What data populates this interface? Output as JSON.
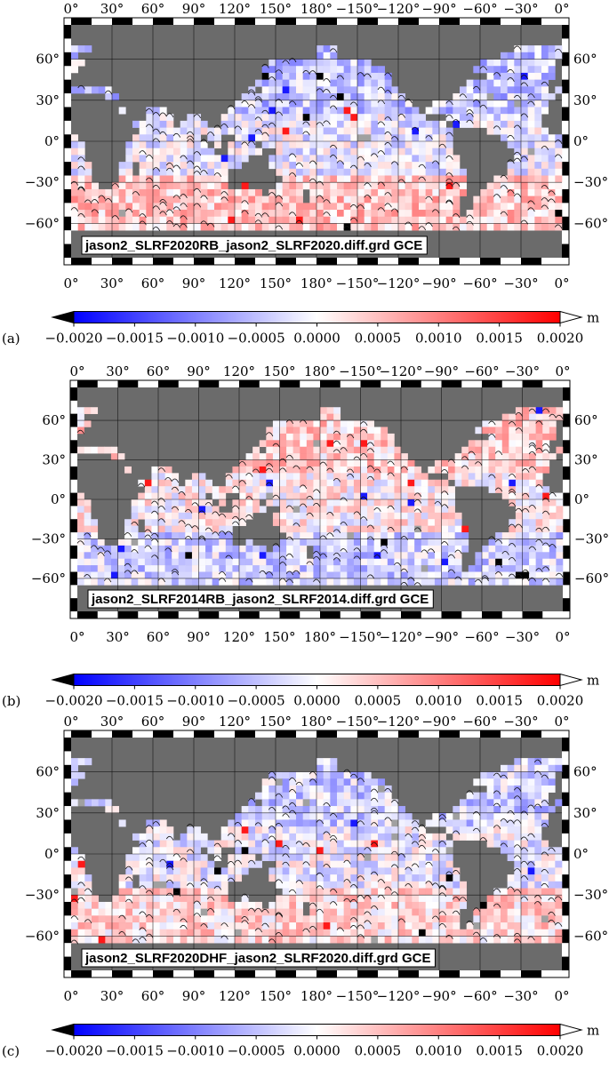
{
  "colors": {
    "land": "#6b6b6b",
    "ocean_base": "#f2f2ff",
    "negative_max": "#0000ff",
    "zero": "#ffffff",
    "positive_max": "#ff0000",
    "missing": "#000000"
  },
  "longitude_ticks": [
    "0°",
    "30°",
    "60°",
    "90°",
    "120°",
    "150°",
    "180°",
    "−150°",
    "−120°",
    "−90°",
    "−60°",
    "−30°",
    "0°"
  ],
  "latitude_ticks": [
    "60°",
    "30°",
    "0°",
    "−30°",
    "−60°"
  ],
  "colorbar": {
    "unit": "m",
    "range": [
      -0.002,
      0.002
    ],
    "tick_labels": [
      "−0.0020",
      "−0.0015",
      "−0.0010",
      "−0.0005",
      "0.0000",
      "0.0005",
      "0.0010",
      "0.0015",
      "0.0020"
    ],
    "colors": [
      "#0000ff",
      "#ffffff",
      "#ff0000"
    ]
  },
  "panels": [
    {
      "id": "a",
      "letter": "(a)",
      "grid_label": "jason2_SLRF2020RB_jason2_SLRF2020.diff.grd GCE",
      "bias": 0.45,
      "north_bias": -0.55
    },
    {
      "id": "b",
      "letter": "(b)",
      "grid_label": "jason2_SLRF2014RB_jason2_SLRF2014.diff.grd GCE",
      "bias": -0.35,
      "north_bias": 0.45
    },
    {
      "id": "c",
      "letter": "(c)",
      "grid_label": "jason2_SLRF2020DHF_jason2_SLRF2020.diff.grd GCE",
      "bias": 0.3,
      "north_bias": -0.45
    }
  ]
}
